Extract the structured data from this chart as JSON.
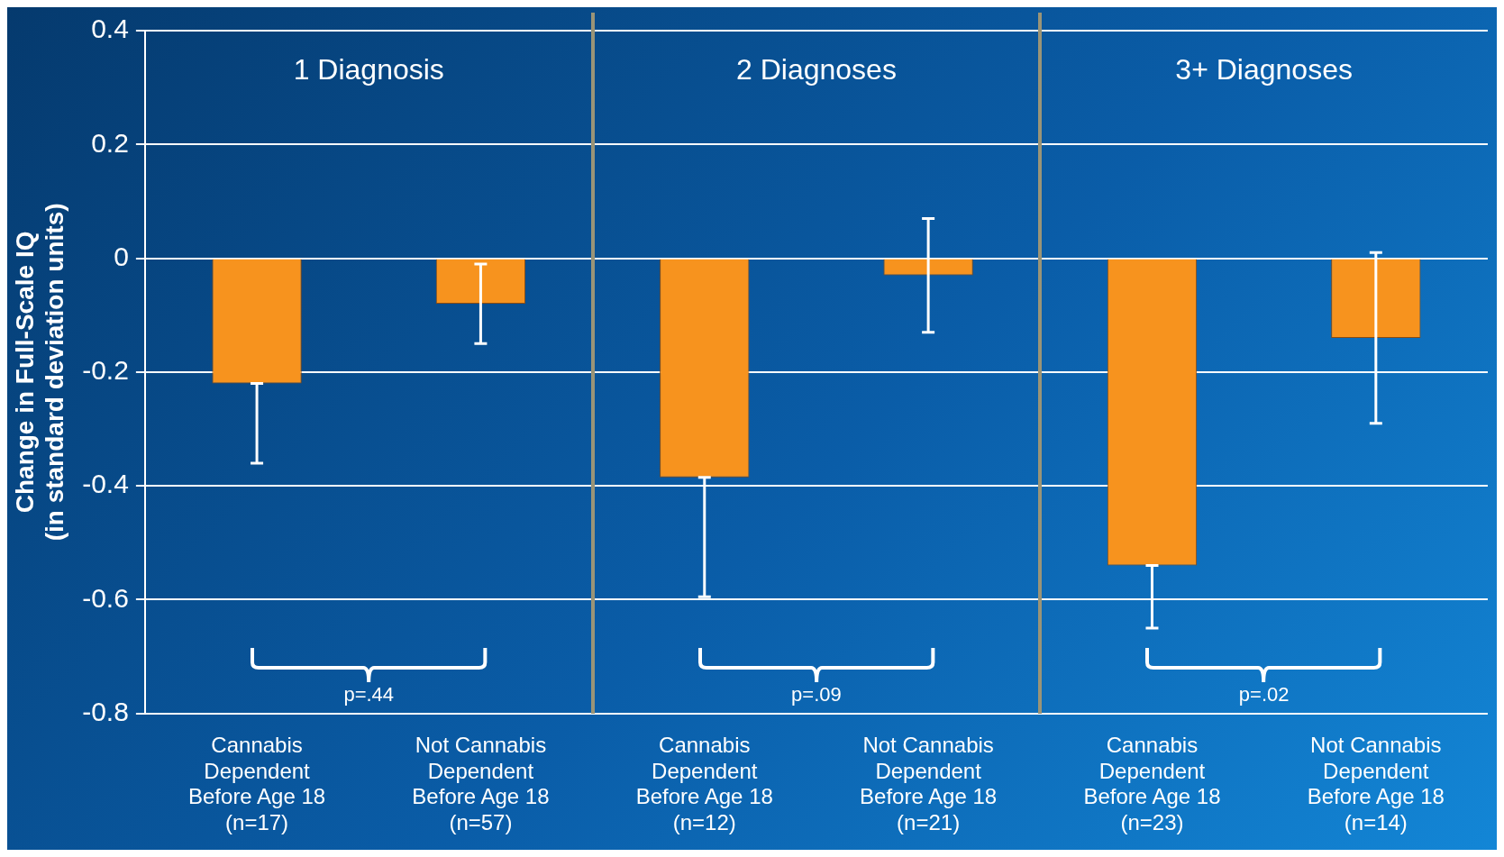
{
  "chart_data": {
    "type": "bar",
    "ylabel": "Change in Full-Scale IQ\n(in standard deviation units)",
    "categories": [
      "Cannabis Dependent Before Age 18 (n=17)",
      "Not Cannabis Dependent Before Age 18 (n=57)",
      "Cannabis Dependent Before Age 18 (n=12)",
      "Not Cannabis Dependent Before Age 18 (n=21)",
      "Cannabis Dependent Before Age 18 (n=23)",
      "Not Cannabis Dependent Before Age 18 (n=14)"
    ],
    "values": [
      -0.22,
      -0.08,
      -0.385,
      -0.03,
      -0.54,
      -0.14
    ],
    "errors": [
      [
        -0.36,
        -0.22
      ],
      0.07,
      [
        -0.595,
        -0.385
      ],
      0.1,
      [
        -0.65,
        -0.54
      ],
      0.15
    ],
    "color": "#f7931e",
    "ylim": [
      -0.8,
      0.4
    ],
    "yticks": [
      -0.8,
      -0.6,
      -0.4,
      -0.2,
      0,
      0.2,
      0.4
    ],
    "grid": "y",
    "annotations": [
      "1 Diagnosis",
      "2 Diagnoses",
      "3+ Diagnoses",
      "p=.44",
      "p=.09",
      "p=.02"
    ]
  }
}
